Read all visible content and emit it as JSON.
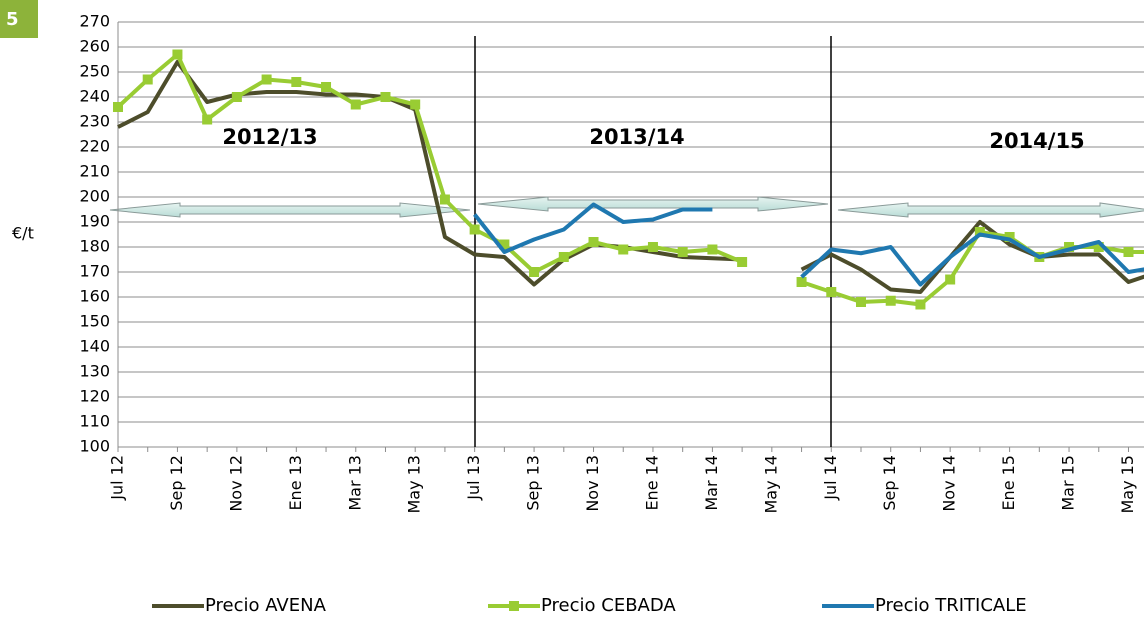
{
  "badge": "5",
  "chart_data": {
    "type": "line",
    "y_label": "€/t",
    "annotations": [
      "2012/13",
      "2013/14",
      "2014/15"
    ],
    "categories": [
      "Jul 12",
      null,
      "Sep 12",
      null,
      "Nov 12",
      null,
      "Ene 13",
      null,
      "Mar 13",
      null,
      "May 13",
      null,
      "Jul 13",
      null,
      "Sep 13",
      null,
      "Nov 13",
      null,
      "Ene 14",
      null,
      "Mar 14",
      null,
      "May 14",
      null,
      "Jul 14",
      null,
      "Sep 14",
      null,
      "Nov 14",
      null,
      "Ene 15",
      null,
      "Mar 15",
      null,
      "May 15",
      null
    ],
    "series": [
      {
        "name": "Precio AVENA",
        "color": "#4d4d2b",
        "marker": "none",
        "values": [
          228,
          234,
          254,
          238,
          241,
          242,
          242,
          241,
          241,
          240,
          235,
          184,
          177,
          176,
          165,
          175,
          181,
          180,
          178,
          176,
          175.5,
          175,
          null,
          171,
          177,
          171,
          163,
          162,
          176,
          190,
          181,
          176,
          177,
          177,
          166,
          170
        ]
      },
      {
        "name": "Precio CEBADA",
        "color": "#99cc33",
        "marker": "square",
        "values": [
          236,
          247,
          257,
          231,
          240,
          247,
          246,
          244,
          237,
          240,
          237,
          199,
          187,
          181,
          170,
          176,
          182,
          179,
          180,
          178,
          179,
          174,
          null,
          166,
          162,
          158,
          158.5,
          157,
          167,
          186,
          184,
          176,
          180,
          180,
          178,
          178
        ]
      },
      {
        "name": "Precio TRITICALE",
        "color": "#1f78b0",
        "marker": "none",
        "values": [
          null,
          null,
          null,
          null,
          null,
          null,
          null,
          null,
          null,
          null,
          null,
          null,
          193,
          178,
          183,
          187,
          197,
          190,
          191,
          195,
          195,
          null,
          null,
          168,
          179,
          177.5,
          180,
          165,
          176,
          185,
          183,
          176,
          179,
          182,
          170,
          172
        ]
      }
    ],
    "ylim": [
      100,
      270
    ],
    "yticks": [
      100,
      110,
      120,
      130,
      140,
      150,
      160,
      170,
      180,
      190,
      200,
      210,
      220,
      230,
      240,
      250,
      260,
      270
    ],
    "grid": true,
    "legend": "bottom"
  }
}
